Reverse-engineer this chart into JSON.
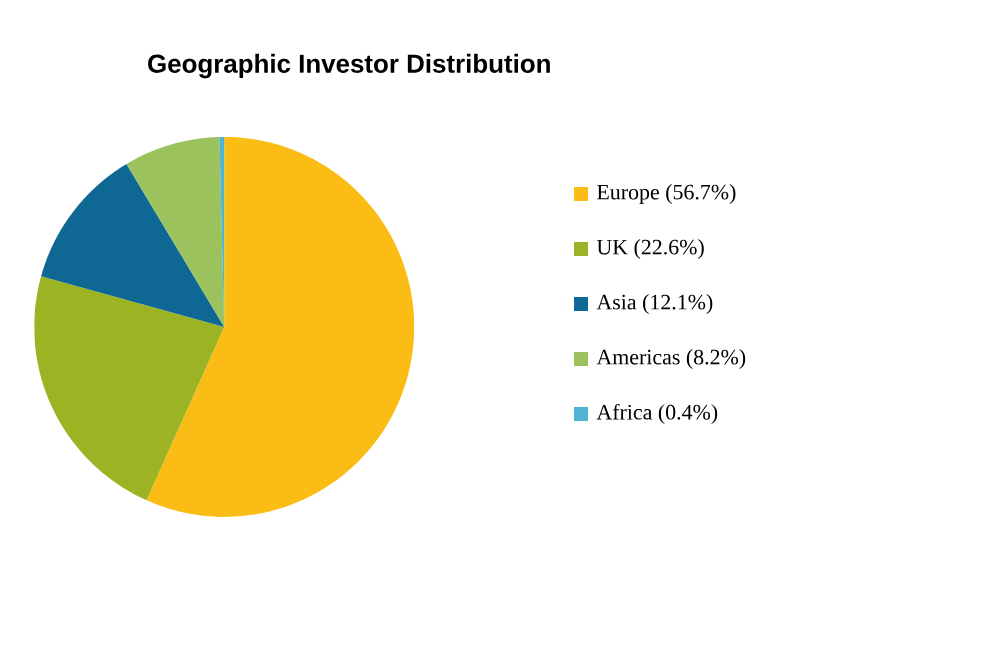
{
  "chart_data": {
    "type": "pie",
    "title": "Geographic Investor Distribution",
    "categories": [
      "Europe (56.7%)",
      "UK (22.6%)",
      "Asia (12.1%)",
      "Americas (8.2%)",
      "Africa (0.4%)"
    ],
    "values": [
      56.7,
      22.6,
      12.1,
      8.2,
      0.4
    ],
    "colors": [
      "#fbbd15",
      "#9cb424",
      "#0e6893",
      "#9cc25e",
      "#4fb3d3"
    ],
    "legend": "right"
  }
}
